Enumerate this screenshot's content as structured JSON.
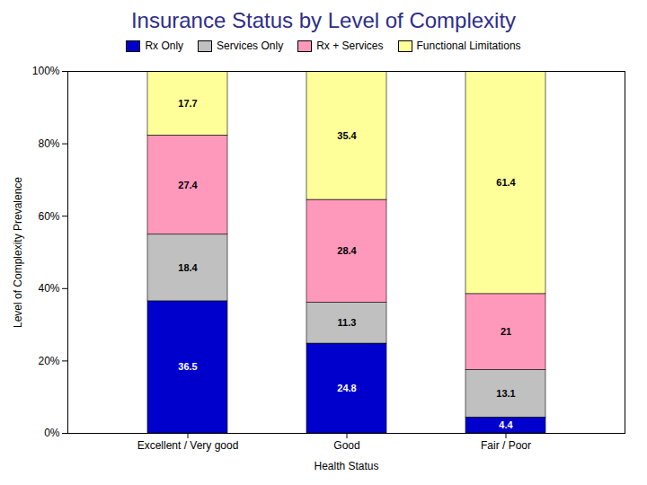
{
  "chart_data": {
    "type": "bar",
    "stacked": true,
    "title": "Insurance Status by Level of Complexity",
    "title_color": "#2E2E8B",
    "categories": [
      "Excellent / Very good",
      "Good",
      "Fair / Poor"
    ],
    "series": [
      {
        "name": "Rx Only",
        "color": "#0000CC",
        "values": [
          36.5,
          24.8,
          4.4
        ]
      },
      {
        "name": "Services Only",
        "color": "#C0C0C0",
        "values": [
          18.4,
          11.3,
          13.1
        ]
      },
      {
        "name": "Rx + Services",
        "color": "#FF99BB",
        "values": [
          27.4,
          28.4,
          21.0
        ]
      },
      {
        "name": "Functional Limitations",
        "color": "#FFFF99",
        "values": [
          17.7,
          35.4,
          61.4
        ]
      }
    ],
    "xlabel": "Health Status",
    "ylabel": "Level of Complexity Prevalence",
    "ylim": [
      0,
      100
    ],
    "yticks": [
      {
        "value": 0,
        "label": "0%"
      },
      {
        "value": 20,
        "label": "20%"
      },
      {
        "value": 40,
        "label": "40%"
      },
      {
        "value": 60,
        "label": "60%"
      },
      {
        "value": 80,
        "label": "80%"
      },
      {
        "value": 100,
        "label": "100%"
      }
    ],
    "data_labels": true,
    "legend": "top",
    "grid": false
  }
}
